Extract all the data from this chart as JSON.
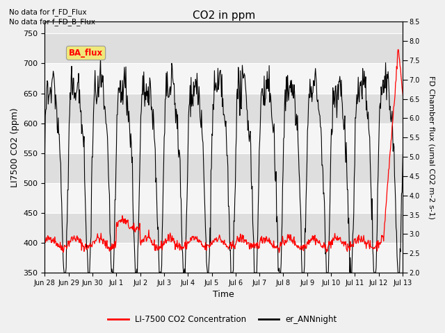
{
  "title": "CO2 in ppm",
  "xlabel": "Time",
  "ylabel_left": "LI7500 CO2 (ppm)",
  "ylabel_right": "FD Chamber flux (umal CO2 m-2 s-1)",
  "ylim_left": [
    350,
    770
  ],
  "ylim_right": [
    2.0,
    8.5
  ],
  "yticks_left": [
    350,
    400,
    450,
    500,
    550,
    600,
    650,
    700,
    750
  ],
  "yticks_right": [
    2.0,
    2.5,
    3.0,
    3.5,
    4.0,
    4.5,
    5.0,
    5.5,
    6.0,
    6.5,
    7.0,
    7.5,
    8.0,
    8.5
  ],
  "xtick_labels": [
    "Jun 28",
    "Jun 29",
    "Jun 30",
    "Jul 1",
    "Jul 2",
    "Jul 3",
    "Jul 4",
    "Jul 5",
    "Jul 6",
    "Jul 7",
    "Jul 8",
    "Jul 9",
    "Jul 10",
    "Jul 11",
    "Jul 12",
    "Jul 13"
  ],
  "top_notes": [
    "No data for f_FD_Flux",
    "No data for f_FD_B_Flux"
  ],
  "ba_flux_label": "BA_flux",
  "legend_entries": [
    "LI-7500 CO2 Concentration",
    "er_ANNnight"
  ],
  "line_colors": [
    "red",
    "black"
  ],
  "background_color": "#f0f0f0",
  "plot_bg_color": "#e8e8e8",
  "band_colors_even": "#ffffff",
  "band_colors_odd": "#d8d8d8"
}
